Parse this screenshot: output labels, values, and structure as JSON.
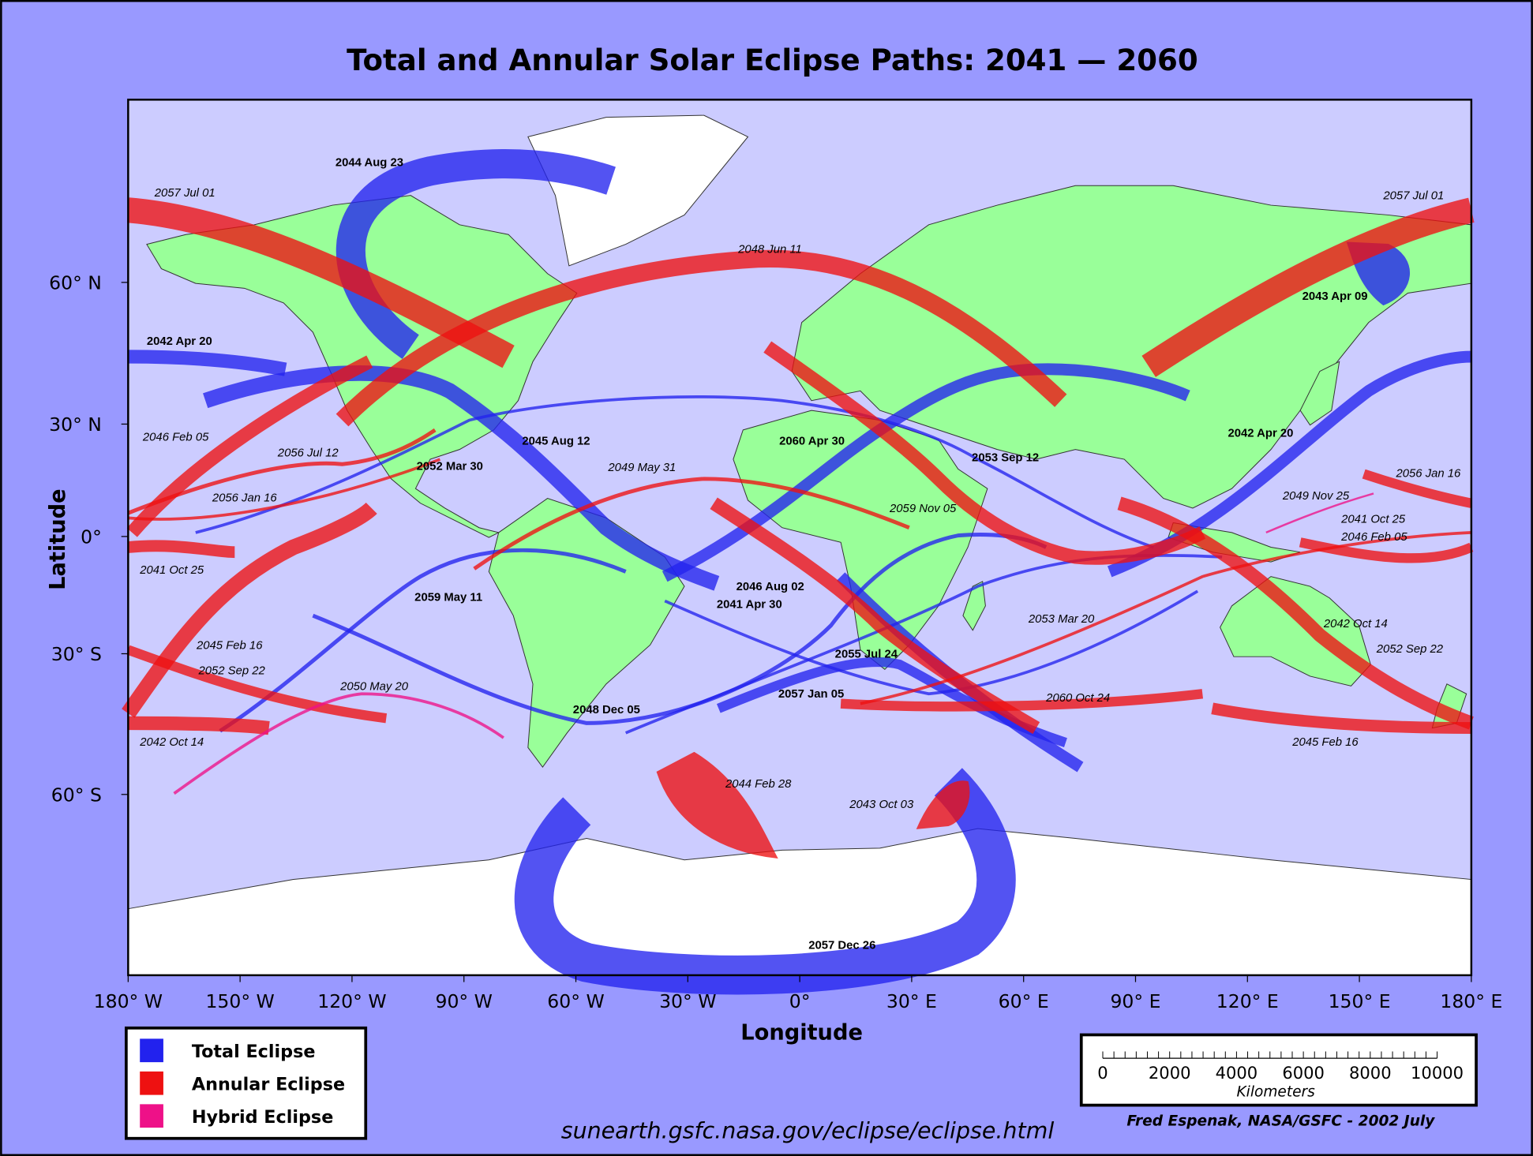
{
  "title": "Total and Annular Solar Eclipse Paths:  2041 — 2060",
  "axes": {
    "x_label": "Longitude",
    "y_label": "Latitude",
    "x_ticks": [
      "180° W",
      "150° W",
      "120° W",
      "90° W",
      "60° W",
      "30° W",
      "0°",
      "30° E",
      "60° E",
      "90° E",
      "120° E",
      "150° E",
      "180° E"
    ],
    "y_ticks": [
      "60° N",
      "30° N",
      "0°",
      "30° S",
      "60° S"
    ]
  },
  "path_labels": [
    "2044 Aug 23",
    "2057 Jul 01",
    "2057 Jul 01",
    "2048 Jun 11",
    "2043 Apr 09",
    "2042 Apr 20",
    "2046 Feb 05",
    "2045 Aug 12",
    "2060 Apr 30",
    "2042 Apr 20",
    "2056 Jul 12",
    "2052 Mar 30",
    "2049 May 31",
    "2053 Sep 12",
    "2056 Jan 16",
    "2056 Jan 16",
    "2059 Nov 05",
    "2049 Nov 25",
    "2041 Oct 25",
    "2046 Feb 05",
    "2041 Oct 25",
    "2046 Aug 02",
    "2059 May 11",
    "2041 Apr 30",
    "2053 Mar 20",
    "2045 Feb 16",
    "2042 Oct 14",
    "2052 Sep 22",
    "2055 Jul 24",
    "2052 Sep 22",
    "2050 May 20",
    "2057 Jan 05",
    "2060 Oct 24",
    "2048 Dec 05",
    "2042 Oct 14",
    "2045 Feb 16",
    "2044 Feb 28",
    "2043 Oct 03",
    "2057 Dec 26"
  ],
  "legend": [
    {
      "label": "Total Eclipse",
      "color": "#2222ee"
    },
    {
      "label": "Annular Eclipse",
      "color": "#ee1111"
    },
    {
      "label": "Hybrid Eclipse",
      "color": "#ee1188"
    }
  ],
  "scale_bar": {
    "ticks": [
      "0",
      "2000",
      "4000",
      "6000",
      "8000",
      "10000"
    ],
    "unit": "Kilometers"
  },
  "source_url": "sunearth.gsfc.nasa.gov/eclipse/eclipse.html",
  "credit": "Fred Espenak, NASA/GSFC - 2002 July"
}
